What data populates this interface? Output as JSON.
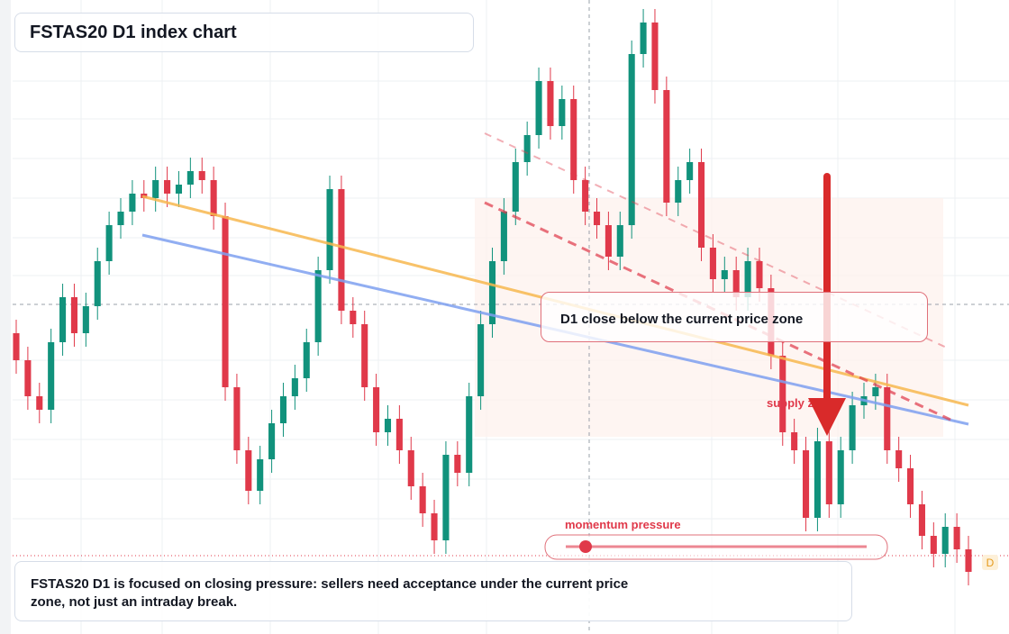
{
  "chart_data": {
    "type": "candlestick",
    "title": "FSTAS20 D1 index chart",
    "ylim": [
      0,
      700
    ],
    "up_color": "#11927c",
    "down_color": "#e0394a",
    "open": [
      330,
      300,
      260,
      245,
      320,
      370,
      330,
      360,
      410,
      450,
      465,
      485,
      480,
      500,
      485,
      495,
      510,
      500,
      460,
      270,
      200,
      155,
      190,
      230,
      260,
      280,
      320,
      400,
      490,
      355,
      340,
      270,
      220,
      235,
      200,
      160,
      130,
      100,
      195,
      175,
      260,
      340,
      410,
      465,
      520,
      550,
      610,
      560,
      590,
      500,
      465,
      450,
      415,
      450,
      640,
      675,
      600,
      475,
      500,
      520,
      425,
      390,
      400,
      370,
      410,
      380,
      305,
      220,
      200,
      125,
      210,
      140,
      200,
      250,
      260,
      270,
      200,
      180,
      140,
      105,
      85,
      115,
      90
    ],
    "high": [
      345,
      315,
      275,
      335,
      385,
      385,
      375,
      425,
      465,
      480,
      500,
      500,
      515,
      515,
      510,
      525,
      525,
      515,
      475,
      285,
      215,
      205,
      245,
      275,
      295,
      335,
      415,
      505,
      505,
      370,
      355,
      285,
      250,
      250,
      215,
      175,
      145,
      210,
      210,
      275,
      355,
      425,
      480,
      535,
      565,
      625,
      625,
      605,
      605,
      515,
      480,
      465,
      465,
      655,
      690,
      690,
      615,
      515,
      535,
      535,
      440,
      415,
      415,
      425,
      425,
      395,
      320,
      235,
      215,
      225,
      225,
      215,
      265,
      275,
      285,
      285,
      215,
      195,
      155,
      120,
      130,
      130,
      105
    ],
    "low": [
      285,
      245,
      230,
      230,
      305,
      315,
      315,
      345,
      395,
      435,
      450,
      465,
      465,
      470,
      470,
      480,
      485,
      445,
      255,
      185,
      140,
      140,
      175,
      215,
      245,
      265,
      305,
      385,
      340,
      325,
      255,
      205,
      205,
      185,
      145,
      115,
      85,
      85,
      160,
      160,
      245,
      325,
      395,
      450,
      505,
      535,
      545,
      545,
      485,
      450,
      435,
      400,
      400,
      435,
      625,
      585,
      460,
      460,
      485,
      410,
      375,
      375,
      355,
      355,
      365,
      290,
      205,
      185,
      110,
      110,
      125,
      125,
      185,
      235,
      245,
      185,
      165,
      125,
      90,
      70,
      70,
      75,
      50
    ],
    "close": [
      300,
      260,
      245,
      320,
      370,
      330,
      360,
      410,
      450,
      465,
      485,
      480,
      500,
      485,
      495,
      510,
      500,
      460,
      270,
      200,
      155,
      190,
      230,
      260,
      280,
      320,
      400,
      490,
      355,
      340,
      270,
      220,
      235,
      200,
      160,
      130,
      100,
      195,
      175,
      260,
      340,
      410,
      465,
      520,
      550,
      610,
      560,
      590,
      500,
      465,
      450,
      415,
      450,
      640,
      675,
      600,
      475,
      500,
      520,
      425,
      390,
      400,
      370,
      410,
      380,
      305,
      220,
      200,
      125,
      210,
      140,
      200,
      250,
      260,
      270,
      200,
      180,
      140,
      105,
      85,
      115,
      90,
      65
    ]
  },
  "labels": {
    "note": "D1 close below the current price zone",
    "supply_zone": "supply zone",
    "momentum": "momentum pressure",
    "marker": "D",
    "caption": "FSTAS20 D1 is focused on closing pressure: sellers need acceptance under the current price zone, not just an intraday break."
  }
}
